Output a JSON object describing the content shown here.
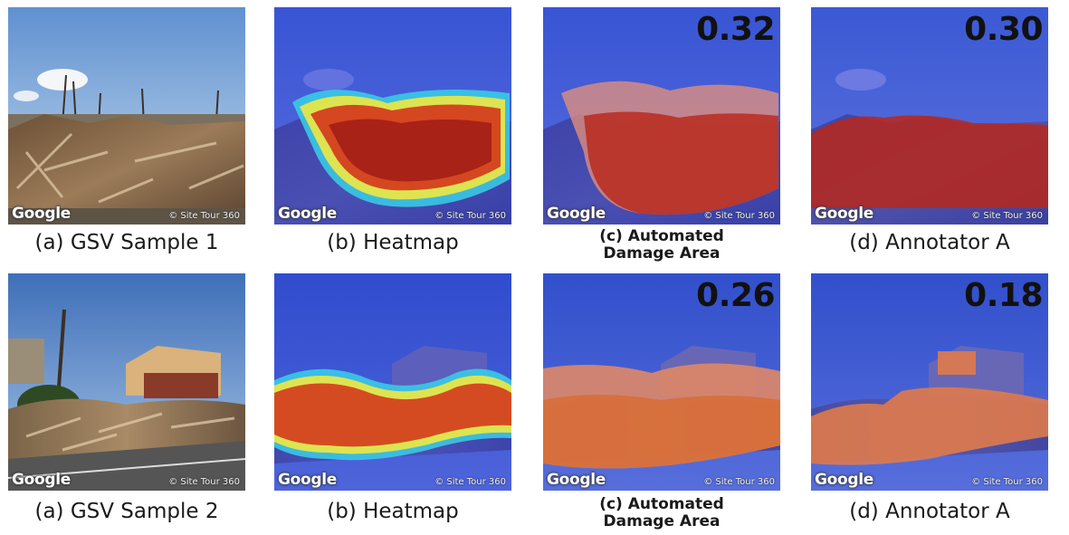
{
  "rows": [
    {
      "captions": [
        "(a) GSV Sample 1",
        "(b) Heatmap",
        "(c) Automated\nDamage Area",
        "(d) Annotator A"
      ],
      "scores": {
        "automated": "0.32",
        "annotator": "0.30"
      }
    },
    {
      "captions": [
        "(a) GSV Sample 2",
        "(b) Heatmap",
        "(c) Automated\nDamage Area",
        "(d) Annotator A"
      ],
      "scores": {
        "automated": "0.26",
        "annotator": "0.18"
      }
    }
  ],
  "watermark": {
    "brand": "Google",
    "credit": "© Site Tour 360"
  },
  "colors": {
    "sky": "#6fa0d8",
    "overlay_blue": "#2b3fd6",
    "damage_red": "#c0271a",
    "debris": "#8a6a4a"
  }
}
